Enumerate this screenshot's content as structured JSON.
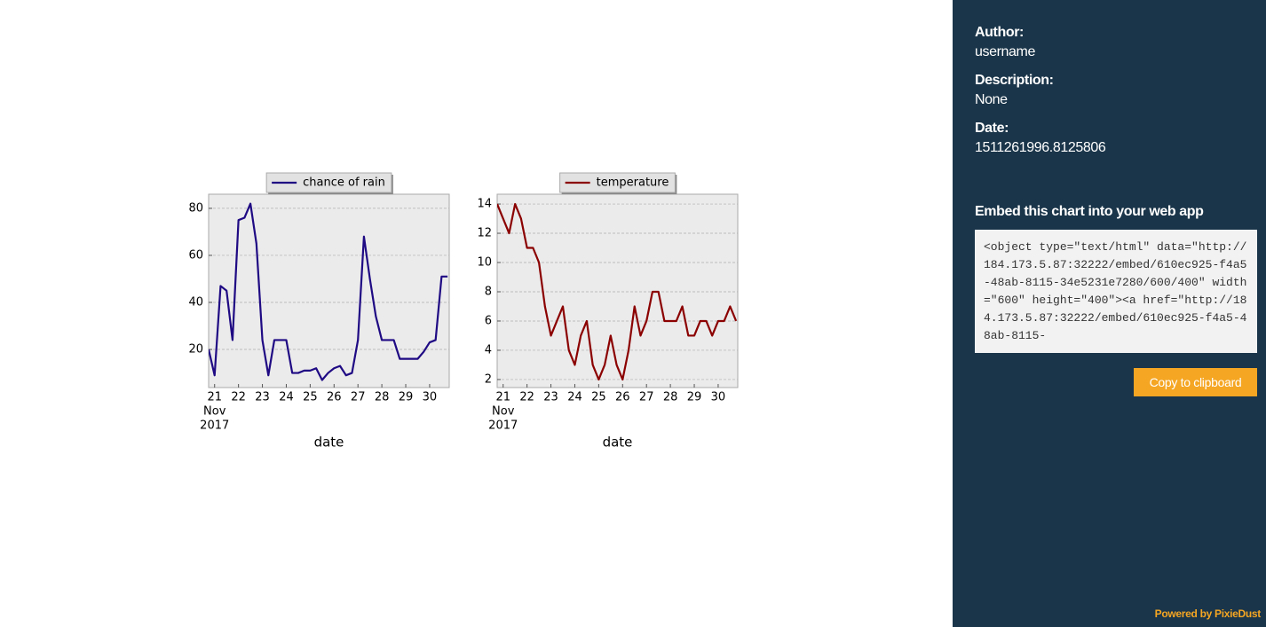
{
  "chart_data": [
    {
      "type": "line",
      "xlabel": "date",
      "x": [
        20.75,
        21,
        21.25,
        21.5,
        21.75,
        22,
        22.25,
        22.5,
        22.75,
        23,
        23.25,
        23.5,
        23.75,
        24,
        24.25,
        24.5,
        24.75,
        25,
        25.25,
        25.5,
        25.75,
        26,
        26.25,
        26.5,
        26.75,
        27,
        27.25,
        27.5,
        27.75,
        28,
        28.25,
        28.5,
        28.75,
        29,
        29.25,
        29.5,
        29.75,
        30,
        30.25,
        30.5,
        30.75
      ],
      "series": [
        {
          "name": "chance of rain",
          "color": "#1f0a84",
          "values": [
            20,
            9,
            47,
            45,
            24,
            75,
            76,
            82,
            65,
            24,
            9,
            24,
            24,
            24,
            10,
            10,
            11,
            11,
            12,
            7,
            10,
            12,
            13,
            9,
            10,
            24,
            68,
            50,
            34,
            24,
            24,
            24,
            16,
            16,
            16,
            16,
            19,
            23,
            24,
            51,
            51
          ]
        }
      ],
      "xlim": [
        20.75,
        30.82
      ],
      "xticks": [
        21,
        22,
        23,
        24,
        25,
        26,
        27,
        28,
        29,
        30
      ],
      "x_date_label": [
        "Nov",
        "2017"
      ],
      "ylim": [
        3.8,
        86
      ],
      "yticks": [
        20,
        40,
        60,
        80
      ],
      "grid": true,
      "legend": "top"
    },
    {
      "type": "line",
      "xlabel": "date",
      "x": [
        20.75,
        21,
        21.25,
        21.5,
        21.75,
        22,
        22.25,
        22.5,
        22.75,
        23,
        23.25,
        23.5,
        23.75,
        24,
        24.25,
        24.5,
        24.75,
        25,
        25.25,
        25.5,
        25.75,
        26,
        26.25,
        26.5,
        26.75,
        27,
        27.25,
        27.5,
        27.75,
        28,
        28.25,
        28.5,
        28.75,
        29,
        29.25,
        29.5,
        29.75,
        30,
        30.25,
        30.5,
        30.75
      ],
      "series": [
        {
          "name": "temperature",
          "color": "#8b0000",
          "values": [
            14,
            13,
            12,
            14,
            13,
            11,
            11,
            10,
            7,
            5,
            6,
            7,
            4,
            3,
            5,
            6,
            3,
            2,
            3,
            5,
            3,
            2,
            4,
            7,
            5,
            6,
            8,
            8,
            6,
            6,
            6,
            7,
            5,
            5,
            6,
            6,
            5,
            6,
            6,
            7,
            6
          ]
        }
      ],
      "xlim": [
        20.75,
        30.82
      ],
      "xticks": [
        21,
        22,
        23,
        24,
        25,
        26,
        27,
        28,
        29,
        30
      ],
      "x_date_label": [
        "Nov",
        "2017"
      ],
      "ylim": [
        1.45,
        14.67
      ],
      "yticks": [
        2,
        4,
        6,
        8,
        10,
        12,
        14
      ],
      "grid": true,
      "legend": "top"
    }
  ],
  "sidebar": {
    "author_label": "Author:",
    "author": "username",
    "description_label": "Description:",
    "description": "None",
    "date_label": "Date:",
    "date": "1511261996.8125806",
    "embed_title": "Embed this chart into your web app",
    "embed_code": "<object type=\"text/html\" data=\"http://184.173.5.87:32222/embed/610ec925-f4a5-48ab-8115-34e5231e7280/600/400\" width=\"600\" height=\"400\"><a href=\"http://184.173.5.87:32222/embed/610ec925-f4a5-48ab-8115-",
    "copy_button": "Copy to clipboard",
    "powered_by": "Powered by PixieDust"
  }
}
